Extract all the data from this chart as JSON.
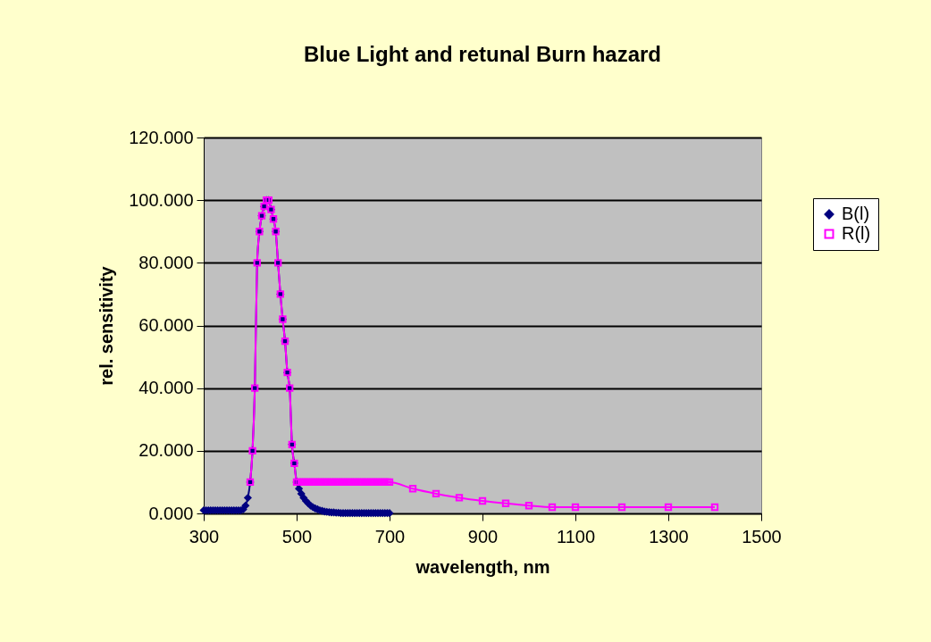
{
  "chart_data": {
    "type": "line",
    "title": "Blue Light and retunal Burn hazard",
    "xlabel": "wavelength, nm",
    "ylabel": "rel. sensitivity",
    "xlim": [
      300,
      1500
    ],
    "xticks": [
      300,
      500,
      700,
      900,
      1100,
      1300,
      1500
    ],
    "ylim": [
      0,
      120
    ],
    "yticks": [
      {
        "value": 0,
        "label": "0.000"
      },
      {
        "value": 20,
        "label": "20.000"
      },
      {
        "value": 40,
        "label": "40.000"
      },
      {
        "value": 60,
        "label": "60.000"
      },
      {
        "value": 80,
        "label": "80.000"
      },
      {
        "value": 100,
        "label": "100.000"
      },
      {
        "value": 120,
        "label": "120.000"
      }
    ],
    "grid": "y",
    "legend": "right",
    "line_style": "solid",
    "series": [
      {
        "name": "B(l)",
        "color": "#000080",
        "marker": "diamond",
        "x": [
          300,
          305,
          310,
          315,
          320,
          325,
          330,
          335,
          340,
          345,
          350,
          355,
          360,
          365,
          370,
          375,
          380,
          385,
          390,
          395,
          400,
          405,
          410,
          415,
          420,
          425,
          430,
          435,
          440,
          445,
          450,
          455,
          460,
          465,
          470,
          475,
          480,
          485,
          490,
          495,
          500,
          505,
          510,
          515,
          520,
          525,
          530,
          535,
          540,
          545,
          550,
          555,
          560,
          565,
          570,
          575,
          580,
          585,
          590,
          595,
          600,
          605,
          610,
          615,
          620,
          625,
          630,
          635,
          640,
          645,
          650,
          655,
          660,
          665,
          670,
          675,
          680,
          685,
          690,
          695,
          700
        ],
        "values": [
          1,
          1,
          1,
          1,
          1,
          1,
          1,
          1,
          1,
          1,
          1,
          1,
          1,
          1,
          1,
          1,
          1,
          1.3,
          2.5,
          5,
          10,
          20,
          40,
          80,
          90,
          95,
          98,
          100,
          100,
          97,
          94,
          90,
          80,
          70,
          62,
          55,
          45,
          40,
          22,
          16,
          10,
          7.9,
          6.3,
          5.0,
          4.0,
          3.2,
          2.5,
          2.0,
          1.6,
          1.3,
          1.0,
          0.8,
          0.6,
          0.5,
          0.4,
          0.3,
          0.3,
          0.2,
          0.2,
          0.1,
          0.1,
          0.1,
          0.1,
          0.1,
          0.1,
          0.1,
          0.1,
          0.1,
          0.1,
          0.1,
          0.1,
          0.1,
          0.1,
          0.1,
          0.1,
          0.1,
          0.1,
          0.1,
          0.1,
          0.1,
          0.1
        ]
      },
      {
        "name": "R(l)",
        "color": "#ff00ff",
        "marker": "square",
        "x": [
          400,
          405,
          410,
          415,
          420,
          425,
          430,
          435,
          440,
          445,
          450,
          455,
          460,
          465,
          470,
          475,
          480,
          485,
          490,
          495,
          500,
          505,
          510,
          515,
          520,
          525,
          530,
          535,
          540,
          545,
          550,
          555,
          560,
          565,
          570,
          575,
          580,
          585,
          590,
          595,
          600,
          605,
          610,
          615,
          620,
          625,
          630,
          635,
          640,
          645,
          650,
          655,
          660,
          665,
          670,
          675,
          680,
          685,
          690,
          695,
          700,
          750,
          800,
          850,
          900,
          950,
          1000,
          1050,
          1100,
          1200,
          1300,
          1400
        ],
        "values": [
          10,
          20,
          40,
          80,
          90,
          95,
          98,
          100,
          100,
          97,
          94,
          90,
          80,
          70,
          62,
          55,
          45,
          40,
          22,
          16,
          10,
          10,
          10,
          10,
          10,
          10,
          10,
          10,
          10,
          10,
          10,
          10,
          10,
          10,
          10,
          10,
          10,
          10,
          10,
          10,
          10,
          10,
          10,
          10,
          10,
          10,
          10,
          10,
          10,
          10,
          10,
          10,
          10,
          10,
          10,
          10,
          10,
          10,
          10,
          10,
          10,
          7.9,
          6.3,
          5.0,
          4.0,
          3.2,
          2.5,
          2.0,
          2.0,
          2.0,
          2.0,
          2.0
        ]
      }
    ]
  }
}
